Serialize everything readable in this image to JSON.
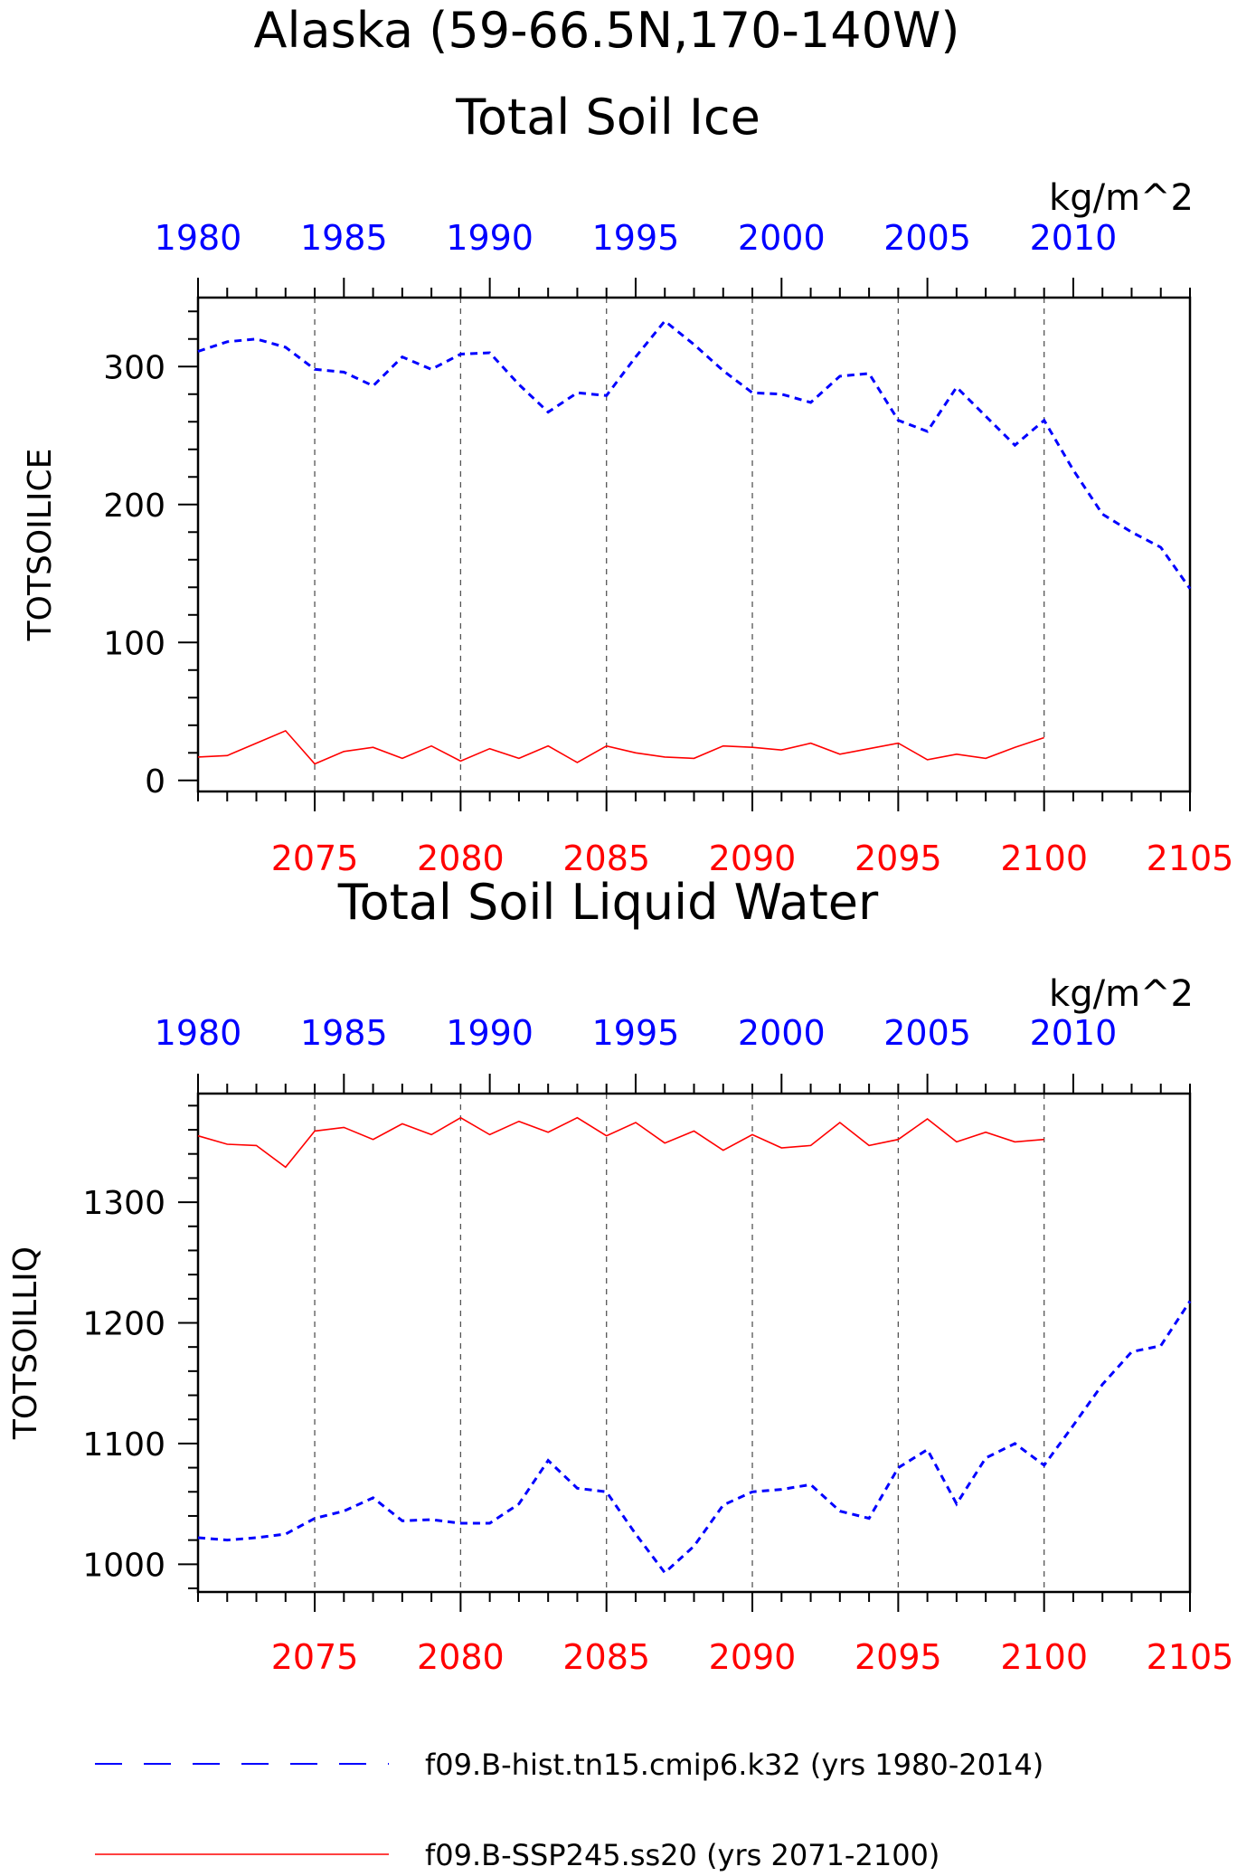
{
  "figure": {
    "title": "Alaska (59-66.5N,170-140W)",
    "colors": {
      "hist": "#0000ff",
      "ssp": "#ff0000",
      "axis": "#000000",
      "grid": "#555555"
    }
  },
  "legend": {
    "hist_label": "f09.B-hist.tn15.cmip6.k32 (yrs 1980-2014)",
    "ssp_label": "f09.B-SSP245.ss20 (yrs 2071-2100)"
  },
  "chart_data": [
    {
      "type": "line",
      "title": "Total Soil Ice",
      "ylabel": "TOTSOILICE",
      "units": "kg/m^2",
      "ylim": [
        -8,
        350
      ],
      "yticks": [
        0,
        100,
        200,
        300
      ],
      "x_top_lim": [
        1980,
        2014
      ],
      "x_top_ticks": [
        1980,
        1985,
        1990,
        1995,
        2000,
        2005,
        2010
      ],
      "x_bottom_lim": [
        2071,
        2105
      ],
      "x_bottom_ticks": [
        2075,
        2080,
        2085,
        2090,
        2095,
        2100,
        2105
      ],
      "gridlines_x_bottom": [
        2075,
        2080,
        2085,
        2090,
        2095,
        2100
      ],
      "series": [
        {
          "name": "f09.B-hist.tn15.cmip6.k32",
          "axis": "top",
          "style": "dashed",
          "x": [
            1980,
            1981,
            1982,
            1983,
            1984,
            1985,
            1986,
            1987,
            1988,
            1989,
            1990,
            1991,
            1992,
            1993,
            1994,
            1995,
            1996,
            1997,
            1998,
            1999,
            2000,
            2001,
            2002,
            2003,
            2004,
            2005,
            2006,
            2007,
            2008,
            2009,
            2010,
            2011,
            2012,
            2013,
            2014
          ],
          "values": [
            311,
            318,
            320,
            314,
            298,
            296,
            286,
            307,
            298,
            309,
            310,
            287,
            267,
            281,
            279,
            307,
            333,
            316,
            297,
            281,
            280,
            274,
            293,
            295,
            261,
            253,
            285,
            264,
            243,
            261,
            225,
            193,
            180,
            169,
            139
          ]
        },
        {
          "name": "f09.B-SSP245.ss20",
          "axis": "bottom",
          "style": "solid",
          "x": [
            2071,
            2072,
            2073,
            2074,
            2075,
            2076,
            2077,
            2078,
            2079,
            2080,
            2081,
            2082,
            2083,
            2084,
            2085,
            2086,
            2087,
            2088,
            2089,
            2090,
            2091,
            2092,
            2093,
            2094,
            2095,
            2096,
            2097,
            2098,
            2099,
            2100
          ],
          "values": [
            17,
            18,
            27,
            36,
            12,
            21,
            24,
            16,
            25,
            14,
            23,
            16,
            25,
            13,
            25,
            20,
            17,
            16,
            25,
            24,
            22,
            27,
            19,
            23,
            27,
            15,
            19,
            16,
            24,
            31
          ]
        }
      ]
    },
    {
      "type": "line",
      "title": "Total Soil Liquid Water",
      "ylabel": "TOTSOILLIQ",
      "units": "kg/m^2",
      "ylim": [
        977,
        1390
      ],
      "yticks": [
        1000,
        1100,
        1200,
        1300
      ],
      "x_top_lim": [
        1980,
        2014
      ],
      "x_top_ticks": [
        1980,
        1985,
        1990,
        1995,
        2000,
        2005,
        2010
      ],
      "x_bottom_lim": [
        2071,
        2105
      ],
      "x_bottom_ticks": [
        2075,
        2080,
        2085,
        2090,
        2095,
        2100,
        2105
      ],
      "gridlines_x_bottom": [
        2075,
        2080,
        2085,
        2090,
        2095,
        2100
      ],
      "series": [
        {
          "name": "f09.B-hist.tn15.cmip6.k32",
          "axis": "top",
          "style": "dashed",
          "x": [
            1980,
            1981,
            1982,
            1983,
            1984,
            1985,
            1986,
            1987,
            1988,
            1989,
            1990,
            1991,
            1992,
            1993,
            1994,
            1995,
            1996,
            1997,
            1998,
            1999,
            2000,
            2001,
            2002,
            2003,
            2004,
            2005,
            2006,
            2007,
            2008,
            2009,
            2010,
            2011,
            2012,
            2013,
            2014
          ],
          "values": [
            1022,
            1020,
            1022,
            1025,
            1038,
            1044,
            1055,
            1036,
            1037,
            1034,
            1034,
            1050,
            1086,
            1063,
            1060,
            1025,
            993,
            1015,
            1049,
            1060,
            1062,
            1066,
            1044,
            1038,
            1080,
            1095,
            1050,
            1088,
            1100,
            1082,
            1115,
            1149,
            1176,
            1181,
            1218
          ]
        },
        {
          "name": "f09.B-SSP245.ss20",
          "axis": "bottom",
          "style": "solid",
          "x": [
            2071,
            2072,
            2073,
            2074,
            2075,
            2076,
            2077,
            2078,
            2079,
            2080,
            2081,
            2082,
            2083,
            2084,
            2085,
            2086,
            2087,
            2088,
            2089,
            2090,
            2091,
            2092,
            2093,
            2094,
            2095,
            2096,
            2097,
            2098,
            2099,
            2100
          ],
          "values": [
            1355,
            1348,
            1347,
            1329,
            1359,
            1362,
            1352,
            1365,
            1356,
            1370,
            1356,
            1367,
            1358,
            1370,
            1355,
            1366,
            1349,
            1359,
            1343,
            1356,
            1345,
            1347,
            1366,
            1347,
            1352,
            1369,
            1350,
            1358,
            1350,
            1352
          ]
        }
      ]
    }
  ]
}
